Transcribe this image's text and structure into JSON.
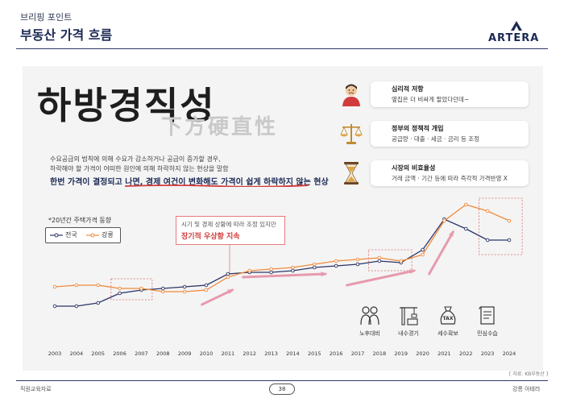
{
  "header": {
    "subtitle": "브리핑 포인트",
    "title": "부동산 가격 흐름",
    "logo": "ARTERA"
  },
  "main": {
    "big_title": "하방경직성",
    "hanja": "下方硬直性",
    "desc_line1": "수요공급의 법칙에 의해 수요가 감소하거나 공급이 증가할 경우,",
    "desc_line2": "하락해야 할 가격이 어떠한 원인에 의해 하락하지 않는 현상을 말함",
    "desc_line3": "한번 가격이 결정되고 나면, 경제 여건이 변화해도 가격이 쉽게 하락하지 않는 현상"
  },
  "cards": [
    {
      "title": "심리적 저항",
      "text": "옆집은 더 비싸게 팔았다던데~",
      "icon": "person-icon"
    },
    {
      "title": "정부의 정책적 개입",
      "text": "공급량 · 대출 · 세금 · 금리 등 조정",
      "icon": "scales-icon"
    },
    {
      "title": "시장의 비효율성",
      "text": "거래 금액 · 기간 등에 따라 즉각적 가격반영 X",
      "icon": "hourglass-icon"
    }
  ],
  "legend": {
    "title": "*20년간 주택가격 동향",
    "items": [
      {
        "label": "전국",
        "color": "#2b3566"
      },
      {
        "label": "강릉",
        "color": "#f08a3c"
      }
    ]
  },
  "callout": {
    "line1": "시기 및 경제 상황에 따라 조정 있지만",
    "line2": "장기적 우상향 지속"
  },
  "bottom_icons": [
    {
      "label": "노후대비",
      "icon": "elderly-couple-icon"
    },
    {
      "label": "내수경기",
      "icon": "construction-crane-icon"
    },
    {
      "label": "세수확보",
      "icon": "tax-bag-icon"
    },
    {
      "label": "민심수습",
      "icon": "document-icon"
    }
  ],
  "chart_data": {
    "type": "line",
    "x": [
      "2003",
      "2004",
      "2005",
      "2006",
      "2007",
      "2008",
      "2009",
      "2010",
      "2011",
      "2012",
      "2013",
      "2014",
      "2015",
      "2016",
      "2017",
      "2018",
      "2019",
      "2020",
      "2021",
      "2022",
      "2023",
      "2024"
    ],
    "series": [
      {
        "name": "전국",
        "color": "#2b3566",
        "values": [
          20,
          20,
          22,
          28,
          30,
          31,
          32,
          33,
          40,
          41,
          41,
          42,
          44,
          45,
          46,
          48,
          47,
          55,
          74,
          68,
          61,
          61
        ]
      },
      {
        "name": "강릉",
        "color": "#f08a3c",
        "values": [
          32,
          33,
          33,
          31,
          31,
          29,
          29,
          30,
          38,
          42,
          43,
          44,
          46,
          48,
          49,
          50,
          48,
          52,
          73,
          83,
          79,
          73
        ]
      }
    ],
    "ylim": [
      0,
      100
    ],
    "grid": false
  },
  "footer": {
    "left": "직원교육자료",
    "page": "38",
    "right": "강릉 아테라",
    "source": "[ 자료: KB부동산 ]"
  }
}
